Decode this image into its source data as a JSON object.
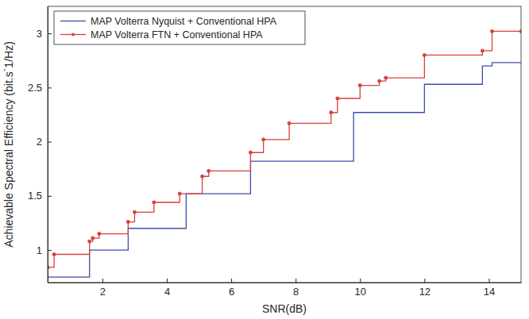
{
  "chart_data": {
    "type": "line",
    "x_label": "SNR(dB)",
    "y_label": "Achievable Spectral Efficiency (bit.s`1/Hz)",
    "xlim": [
      0.3,
      15
    ],
    "ylim": [
      0.7,
      3.25
    ],
    "xticks": [
      2,
      4,
      6,
      8,
      10,
      12,
      14
    ],
    "yticks": [
      1,
      1.5,
      2,
      2.5,
      3
    ],
    "grid": false,
    "legend": "top-left",
    "line_style": "step",
    "series": [
      {
        "name": "MAP Volterra Nyquist + Conventional HPA",
        "color": "#3b4fa8",
        "marker": "none",
        "x": [
          0.3,
          1.6,
          2.8,
          4.6,
          6.6,
          9.8,
          12.0,
          13.8,
          14.1,
          15
        ],
        "values": [
          0.75,
          1.0,
          1.2,
          1.52,
          1.82,
          2.27,
          2.53,
          2.7,
          2.73,
          2.73
        ]
      },
      {
        "name": "MAP Volterra FTN + Conventional HPA",
        "color": "#d9413a",
        "marker": "circle",
        "x": [
          0.3,
          0.5,
          1.6,
          1.7,
          1.9,
          2.8,
          3.0,
          3.6,
          4.4,
          5.1,
          5.3,
          6.6,
          7.0,
          7.8,
          9.1,
          9.3,
          10.0,
          10.6,
          10.8,
          12.0,
          13.8,
          14.1,
          15
        ],
        "values": [
          0.84,
          0.96,
          1.08,
          1.11,
          1.15,
          1.26,
          1.35,
          1.44,
          1.52,
          1.68,
          1.73,
          1.9,
          2.02,
          2.17,
          2.27,
          2.4,
          2.52,
          2.56,
          2.59,
          2.8,
          2.84,
          3.02,
          3.02
        ]
      }
    ]
  }
}
